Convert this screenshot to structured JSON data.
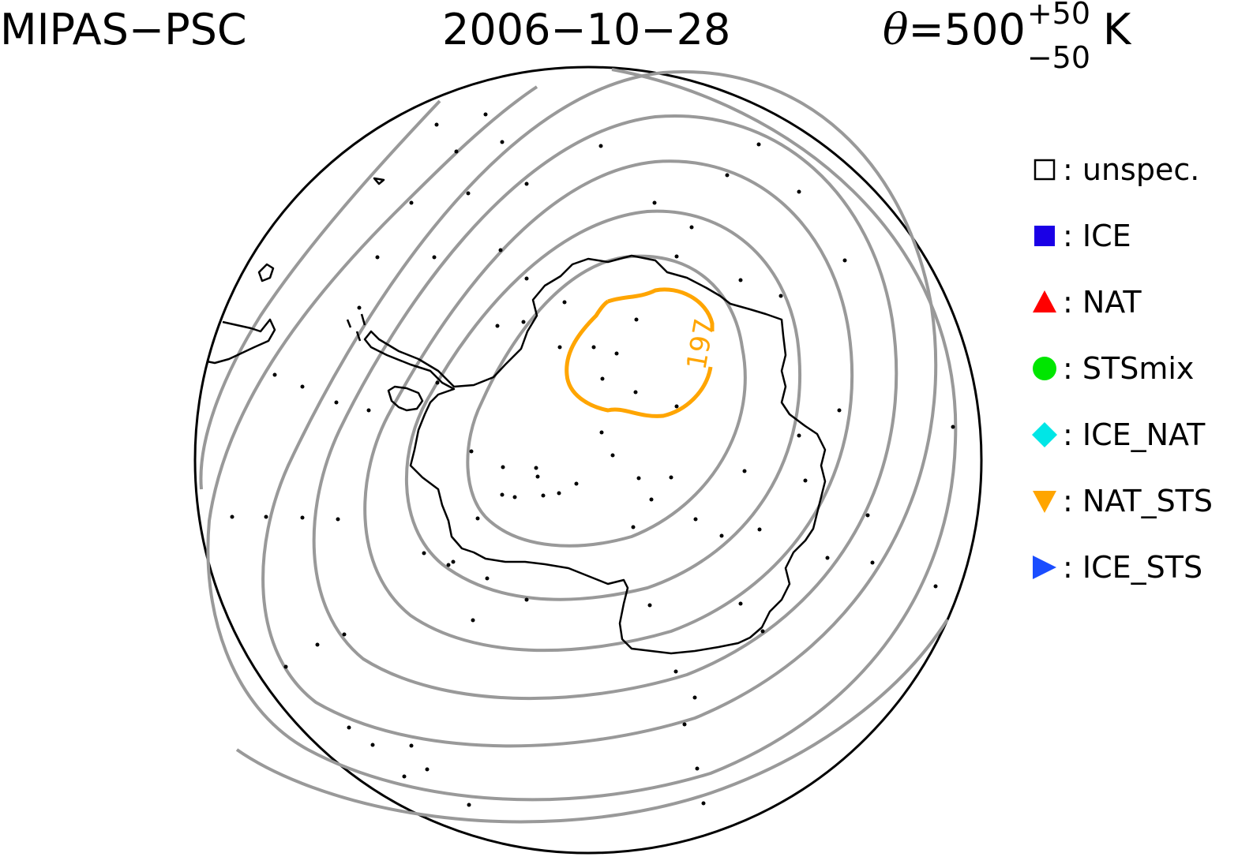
{
  "header": {
    "instrument": "MIPAS−PSC",
    "date": "2006−10−28",
    "theta_symbol": "θ",
    "theta_value": "=500",
    "theta_sup": "+50",
    "theta_sub": "−50",
    "theta_unit": "K"
  },
  "contour_label": "197",
  "legend": [
    {
      "label": ": unspec.",
      "marker": "open-square",
      "color": "#000000"
    },
    {
      "label": ": ICE",
      "marker": "square",
      "color": "#1a00e6"
    },
    {
      "label": ": NAT",
      "marker": "triangle-up",
      "color": "#ff0000"
    },
    {
      "label": ": STSmix",
      "marker": "circle",
      "color": "#00e600"
    },
    {
      "label": ": ICE_NAT",
      "marker": "diamond",
      "color": "#00e6e6"
    },
    {
      "label": ": NAT_STS",
      "marker": "triangle-down",
      "color": "#ffa500"
    },
    {
      "label": ": ICE_STS",
      "marker": "triangle-right",
      "color": "#1a4dff"
    }
  ],
  "colors": {
    "contour": "#999999",
    "highlight_contour": "#ffa500",
    "coastline": "#000000",
    "observation": "#000000"
  }
}
